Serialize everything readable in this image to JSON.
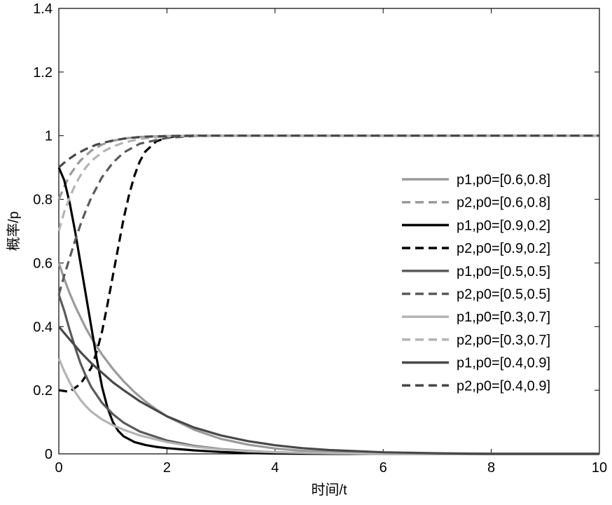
{
  "chart_data": {
    "type": "line",
    "title": "",
    "xlabel": "时间/t",
    "ylabel": "概率/p",
    "xlim": [
      0,
      10
    ],
    "ylim": [
      0,
      1.4
    ],
    "xticks": [
      "0",
      "2",
      "4",
      "6",
      "8",
      "10"
    ],
    "yticks": [
      "0",
      "0.2",
      "0.4",
      "0.6",
      "0.8",
      "1",
      "1.2",
      "1.4"
    ],
    "grid": false,
    "legend_position": "right",
    "series": [
      {
        "name": "p1,p0=[0.6,0.8]",
        "color": "#9a9a9a",
        "dash": "solid",
        "points": [
          [
            0,
            0.6
          ],
          [
            0.1,
            0.55
          ],
          [
            0.2,
            0.505
          ],
          [
            0.3,
            0.465
          ],
          [
            0.4,
            0.43
          ],
          [
            0.5,
            0.395
          ],
          [
            0.6,
            0.365
          ],
          [
            0.8,
            0.312
          ],
          [
            1.0,
            0.267
          ],
          [
            1.2,
            0.228
          ],
          [
            1.4,
            0.194
          ],
          [
            1.6,
            0.165
          ],
          [
            1.8,
            0.14
          ],
          [
            2.0,
            0.118
          ],
          [
            2.5,
            0.076
          ],
          [
            3.0,
            0.047
          ],
          [
            3.5,
            0.029
          ],
          [
            4.0,
            0.017
          ],
          [
            4.5,
            0.01
          ],
          [
            5.0,
            0.006
          ],
          [
            6.0,
            0.002
          ],
          [
            7,
            0
          ],
          [
            10,
            0
          ]
        ]
      },
      {
        "name": "p2,p0=[0.6,0.8]",
        "color": "#9a9a9a",
        "dash": "dashed",
        "points": [
          [
            0,
            0.8
          ],
          [
            0.1,
            0.84
          ],
          [
            0.2,
            0.875
          ],
          [
            0.3,
            0.9
          ],
          [
            0.4,
            0.922
          ],
          [
            0.6,
            0.953
          ],
          [
            0.8,
            0.972
          ],
          [
            1.0,
            0.984
          ],
          [
            1.2,
            0.991
          ],
          [
            1.5,
            0.996
          ],
          [
            2.0,
            0.999
          ],
          [
            2.5,
            1.0
          ],
          [
            10,
            1.0
          ]
        ]
      },
      {
        "name": "p1,p0=[0.9,0.2]",
        "color": "#000000",
        "dash": "solid",
        "points": [
          [
            0,
            0.9
          ],
          [
            0.1,
            0.86
          ],
          [
            0.2,
            0.79
          ],
          [
            0.3,
            0.7
          ],
          [
            0.4,
            0.6
          ],
          [
            0.5,
            0.5
          ],
          [
            0.6,
            0.4
          ],
          [
            0.7,
            0.3
          ],
          [
            0.8,
            0.21
          ],
          [
            0.9,
            0.145
          ],
          [
            1.0,
            0.1
          ],
          [
            1.1,
            0.072
          ],
          [
            1.2,
            0.055
          ],
          [
            1.4,
            0.037
          ],
          [
            1.6,
            0.028
          ],
          [
            1.8,
            0.022
          ],
          [
            2.0,
            0.018
          ],
          [
            2.5,
            0.011
          ],
          [
            3.0,
            0.006
          ],
          [
            3.5,
            0.003
          ],
          [
            4.0,
            0.001
          ],
          [
            5,
            0
          ],
          [
            10,
            0
          ]
        ]
      },
      {
        "name": "p2,p0=[0.9,0.2]",
        "color": "#000000",
        "dash": "dashed",
        "points": [
          [
            0,
            0.2
          ],
          [
            0.2,
            0.195
          ],
          [
            0.4,
            0.22
          ],
          [
            0.6,
            0.27
          ],
          [
            0.7,
            0.32
          ],
          [
            0.8,
            0.385
          ],
          [
            0.9,
            0.47
          ],
          [
            1.0,
            0.56
          ],
          [
            1.1,
            0.65
          ],
          [
            1.2,
            0.74
          ],
          [
            1.3,
            0.815
          ],
          [
            1.4,
            0.875
          ],
          [
            1.5,
            0.92
          ],
          [
            1.6,
            0.95
          ],
          [
            1.8,
            0.982
          ],
          [
            2.0,
            0.994
          ],
          [
            2.2,
            0.998
          ],
          [
            2.5,
            1.0
          ],
          [
            10,
            1.0
          ]
        ]
      },
      {
        "name": "p1,p0=[0.5,0.5]",
        "color": "#5a5a5a",
        "dash": "solid",
        "points": [
          [
            0,
            0.5
          ],
          [
            0.1,
            0.45
          ],
          [
            0.2,
            0.39
          ],
          [
            0.3,
            0.335
          ],
          [
            0.4,
            0.285
          ],
          [
            0.5,
            0.245
          ],
          [
            0.6,
            0.21
          ],
          [
            0.8,
            0.16
          ],
          [
            1.0,
            0.125
          ],
          [
            1.2,
            0.098
          ],
          [
            1.5,
            0.07
          ],
          [
            2.0,
            0.042
          ],
          [
            2.5,
            0.025
          ],
          [
            3.0,
            0.015
          ],
          [
            3.5,
            0.009
          ],
          [
            4.0,
            0.005
          ],
          [
            5.0,
            0.002
          ],
          [
            6,
            0
          ],
          [
            10,
            0
          ]
        ]
      },
      {
        "name": "p2,p0=[0.5,0.5]",
        "color": "#5a5a5a",
        "dash": "dashed",
        "points": [
          [
            0,
            0.5
          ],
          [
            0.1,
            0.56
          ],
          [
            0.2,
            0.615
          ],
          [
            0.3,
            0.67
          ],
          [
            0.4,
            0.72
          ],
          [
            0.5,
            0.765
          ],
          [
            0.6,
            0.805
          ],
          [
            0.8,
            0.87
          ],
          [
            1.0,
            0.915
          ],
          [
            1.2,
            0.947
          ],
          [
            1.5,
            0.975
          ],
          [
            2.0,
            0.993
          ],
          [
            2.5,
            0.999
          ],
          [
            3.0,
            1.0
          ],
          [
            10,
            1.0
          ]
        ]
      },
      {
        "name": "p1,p0=[0.3,0.7]",
        "color": "#b4b4b4",
        "dash": "solid",
        "points": [
          [
            0,
            0.3
          ],
          [
            0.1,
            0.26
          ],
          [
            0.2,
            0.225
          ],
          [
            0.3,
            0.195
          ],
          [
            0.4,
            0.17
          ],
          [
            0.5,
            0.15
          ],
          [
            0.6,
            0.133
          ],
          [
            0.8,
            0.108
          ],
          [
            1.0,
            0.09
          ],
          [
            1.2,
            0.076
          ],
          [
            1.5,
            0.058
          ],
          [
            2.0,
            0.037
          ],
          [
            2.5,
            0.023
          ],
          [
            3.0,
            0.014
          ],
          [
            3.5,
            0.008
          ],
          [
            4.0,
            0.005
          ],
          [
            5.0,
            0.002
          ],
          [
            6,
            0
          ],
          [
            10,
            0
          ]
        ]
      },
      {
        "name": "p2,p0=[0.3,0.7]",
        "color": "#b4b4b4",
        "dash": "dashed",
        "points": [
          [
            0,
            0.7
          ],
          [
            0.1,
            0.76
          ],
          [
            0.2,
            0.805
          ],
          [
            0.3,
            0.845
          ],
          [
            0.4,
            0.875
          ],
          [
            0.5,
            0.9
          ],
          [
            0.6,
            0.92
          ],
          [
            0.8,
            0.948
          ],
          [
            1.0,
            0.966
          ],
          [
            1.2,
            0.978
          ],
          [
            1.5,
            0.99
          ],
          [
            2.0,
            0.998
          ],
          [
            2.5,
            1.0
          ],
          [
            10,
            1.0
          ]
        ]
      },
      {
        "name": "p1,p0=[0.4,0.9]",
        "color": "#484848",
        "dash": "solid",
        "points": [
          [
            0,
            0.4
          ],
          [
            0.2,
            0.36
          ],
          [
            0.4,
            0.32
          ],
          [
            0.6,
            0.285
          ],
          [
            0.8,
            0.255
          ],
          [
            1.0,
            0.225
          ],
          [
            1.2,
            0.2
          ],
          [
            1.5,
            0.165
          ],
          [
            2.0,
            0.118
          ],
          [
            2.5,
            0.083
          ],
          [
            3.0,
            0.058
          ],
          [
            3.5,
            0.04
          ],
          [
            4.0,
            0.027
          ],
          [
            4.5,
            0.018
          ],
          [
            5.0,
            0.012
          ],
          [
            6.0,
            0.005
          ],
          [
            7.0,
            0.002
          ],
          [
            8,
            0
          ],
          [
            10,
            0
          ]
        ]
      },
      {
        "name": "p2,p0=[0.4,0.9]",
        "color": "#484848",
        "dash": "dashed",
        "points": [
          [
            0,
            0.9
          ],
          [
            0.1,
            0.915
          ],
          [
            0.2,
            0.928
          ],
          [
            0.3,
            0.94
          ],
          [
            0.5,
            0.958
          ],
          [
            0.7,
            0.972
          ],
          [
            1.0,
            0.985
          ],
          [
            1.3,
            0.993
          ],
          [
            1.6,
            0.997
          ],
          [
            2.0,
            0.999
          ],
          [
            2.5,
            1.0
          ],
          [
            10,
            1.0
          ]
        ]
      }
    ]
  }
}
